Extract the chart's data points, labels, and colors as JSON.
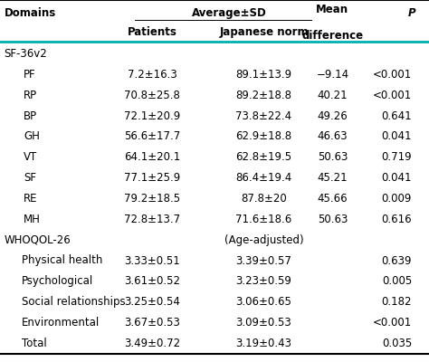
{
  "section1_label": "SF-36v2",
  "section1_rows": [
    [
      "PF",
      "7.2±16.3",
      "89.1±13.9",
      "−9.14",
      "<0.001"
    ],
    [
      "RP",
      "70.8±25.8",
      "89.2±18.8",
      "40.21",
      "<0.001"
    ],
    [
      "BP",
      "72.1±20.9",
      "73.8±22.4",
      "49.26",
      "0.641"
    ],
    [
      "GH",
      "56.6±17.7",
      "62.9±18.8",
      "46.63",
      "0.041"
    ],
    [
      "VT",
      "64.1±20.1",
      "62.8±19.5",
      "50.63",
      "0.719"
    ],
    [
      "SF",
      "77.1±25.9",
      "86.4±19.4",
      "45.21",
      "0.041"
    ],
    [
      "RE",
      "79.2±18.5",
      "87.8±20",
      "45.66",
      "0.009"
    ],
    [
      "MH",
      "72.8±13.7",
      "71.6±18.6",
      "50.63",
      "0.616"
    ]
  ],
  "section2_label": "WHOQOL-26",
  "section2_note": "(Age-adjusted)",
  "section2_rows": [
    [
      "Physical health",
      "3.33±0.51",
      "3.39±0.57",
      "",
      "0.639"
    ],
    [
      "Psychological",
      "3.61±0.52",
      "3.23±0.59",
      "",
      "0.005"
    ],
    [
      "Social relationships",
      "3.25±0.54",
      "3.06±0.65",
      "",
      "0.182"
    ],
    [
      "Environmental",
      "3.67±0.53",
      "3.09±0.53",
      "",
      "<0.001"
    ],
    [
      "Total",
      "3.49±0.72",
      "3.19±0.43",
      "",
      "0.035"
    ]
  ],
  "font_size": 8.5,
  "teal_color": "#009999",
  "header_line_color": "#333333"
}
